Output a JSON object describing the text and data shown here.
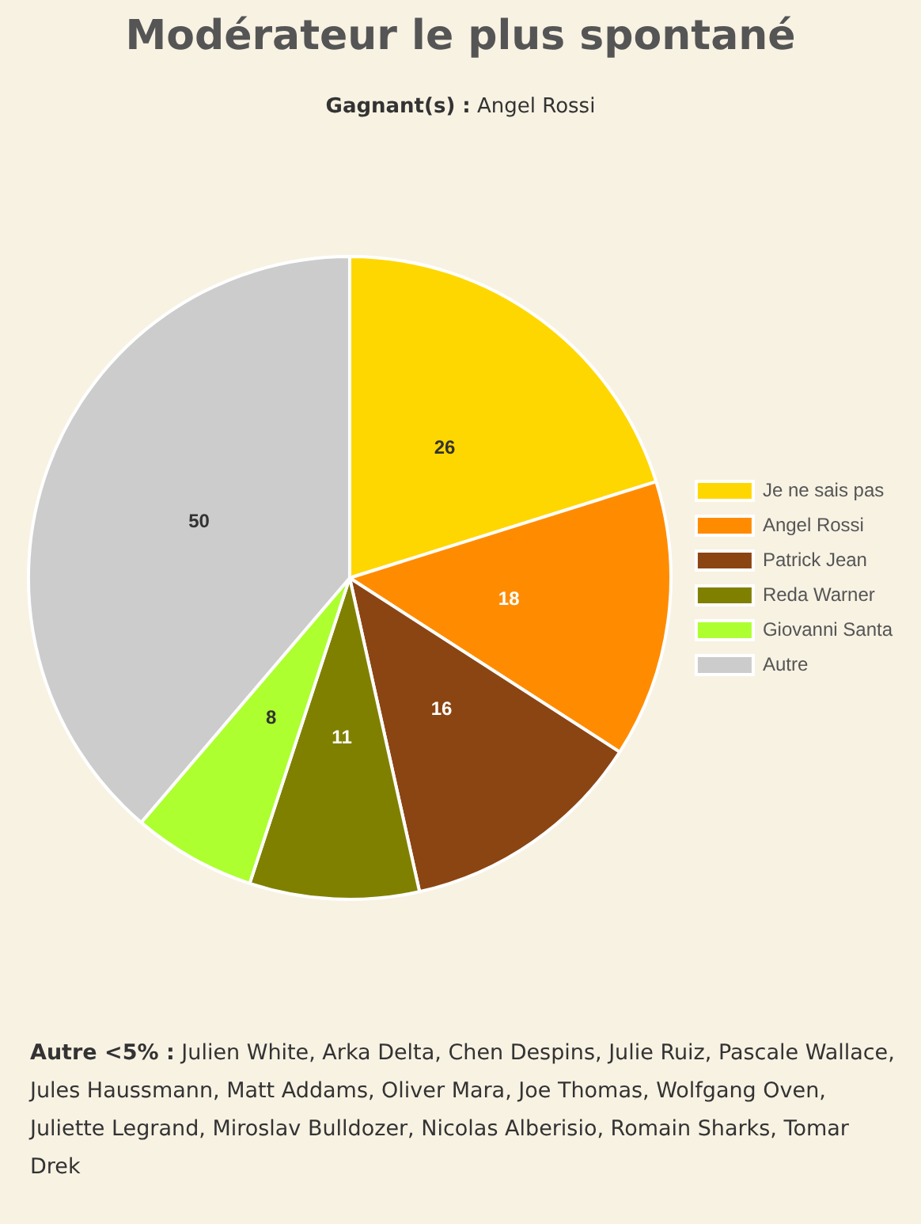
{
  "chart_data": {
    "type": "pie",
    "title": "Modérateur le plus spontané",
    "subtitle": "Gagnant(s) : Angel Rossi",
    "categories": [
      "Je ne sais pas",
      "Angel Rossi",
      "Patrick Jean",
      "Reda Warner",
      "Giovanni Santa",
      "Autre"
    ],
    "values": [
      26,
      18,
      16,
      11,
      8,
      50
    ],
    "colors": [
      "#ffd700",
      "#ff8c00",
      "#8b4513",
      "#808000",
      "#adff2f",
      "#cccccc"
    ],
    "data_labels": true,
    "legend": "right",
    "annotations": [
      "Autre <5% : Julien White, Arka Delta, Chen Despins, Julie Ruiz, Pascale Wallace, Jules Haussmann, Matt Addams, Oliver Mara, Joe Thomas, Wolfgang Oven, Juliette Legrand, Miroslav Bulldozer, Nicolas Alberisio, Romain Sharks, Tomar Drek"
    ]
  }
}
